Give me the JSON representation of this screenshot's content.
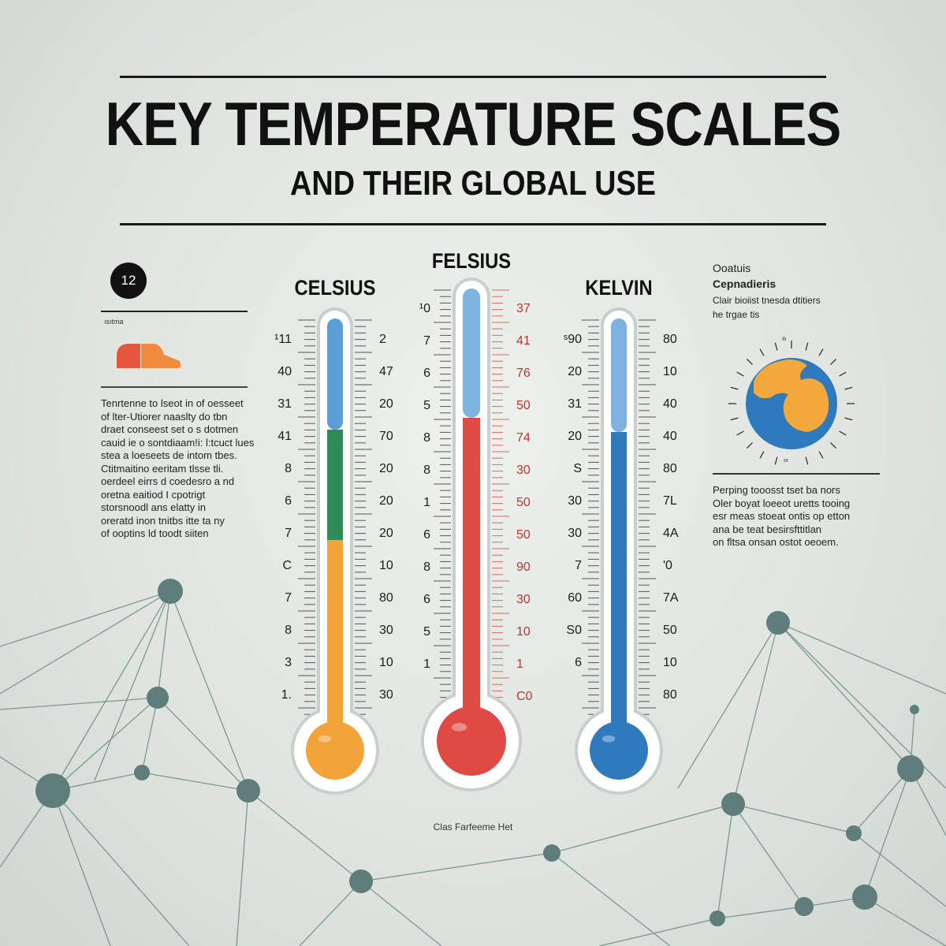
{
  "header": {
    "title": "KEY TEMPERATURE SCALES",
    "subtitle": "AND THEIR GLOBAL USE"
  },
  "left_panel": {
    "badge": "12",
    "caption": "ısıtma",
    "paragraph": [
      "Tenrtenne to lseot in of oesseet",
      "of lter-Utiorer naaslty do tbn",
      "draet conseest set o s dotmen",
      "cauid ie o sontdiaam!i: l:tcuct lues",
      "stea a loeseets de intom tbes.",
      "Ctitmaitino eeritam tlsse tli.",
      "oerdeel eirrs d coedesro a nd",
      "oretna eaitiod I cpotrigt",
      "storsnoodl ans elatty in",
      "oreratd inon tnitbs itte ta ny",
      "of ooptins ld toodt siiten"
    ],
    "accent_colors": [
      "#e8553d",
      "#f08a3c"
    ]
  },
  "scales": [
    {
      "title": "CELSIUS",
      "left_labels": [
        "¹11",
        "40",
        "31",
        "41",
        "8",
        "6",
        "7",
        "C",
        "7",
        "8",
        "3",
        "1."
      ],
      "right_labels": [
        "2",
        "47",
        "20",
        "70",
        "20",
        "20",
        "20",
        "10",
        "80",
        "30",
        "10",
        "30"
      ],
      "colors": {
        "fill": [
          "#f2a33a",
          "#2e8b57",
          "#5b9fd6"
        ],
        "bulb": "#f2a33a"
      }
    },
    {
      "title": "FELSIUS",
      "left_labels": [
        "¹0",
        "7",
        "6",
        "5",
        "8",
        "8",
        "1",
        "6",
        "8",
        "6",
        "5",
        "1"
      ],
      "right_labels": [
        "37",
        "41",
        "76",
        "50",
        "74",
        "30",
        "50",
        "50",
        "90",
        "30",
        "10",
        "1",
        "C0"
      ],
      "colors": {
        "fill": [
          "#e04a45",
          "#7db4e0"
        ],
        "bulb": "#e04a45"
      }
    },
    {
      "title": "KELVIN",
      "left_labels": [
        "ˢ90",
        "20",
        "31",
        "20",
        "S",
        "30",
        "30",
        "7",
        "60",
        "S0",
        "6"
      ],
      "right_labels": [
        "80",
        "10",
        "40",
        "40",
        "80",
        "7L",
        "4A",
        "'0",
        "7A",
        "50",
        "10",
        "80"
      ],
      "colors": {
        "fill": [
          "#2f79bd",
          "#7fb2e0"
        ],
        "bulb": "#2f79bd"
      }
    }
  ],
  "right_panel": {
    "title_lines": [
      "Ooatuis",
      "Cepnadieris",
      "Clair bioiist tnesda dtitiers",
      "he trgae tis"
    ],
    "paragraph": [
      "Perping tooosst tset ba nors",
      "Oler boyat loeeot uretts tooing",
      "esr meas stoeat ontis op etton",
      "ana be teat besirsfttitlan",
      "on fltsa onsan ostot oeoem."
    ],
    "globe_colors": {
      "ocean": "#2f79bd",
      "land": "#f2a83d"
    }
  },
  "footer": "Clas Farfeeme Het"
}
